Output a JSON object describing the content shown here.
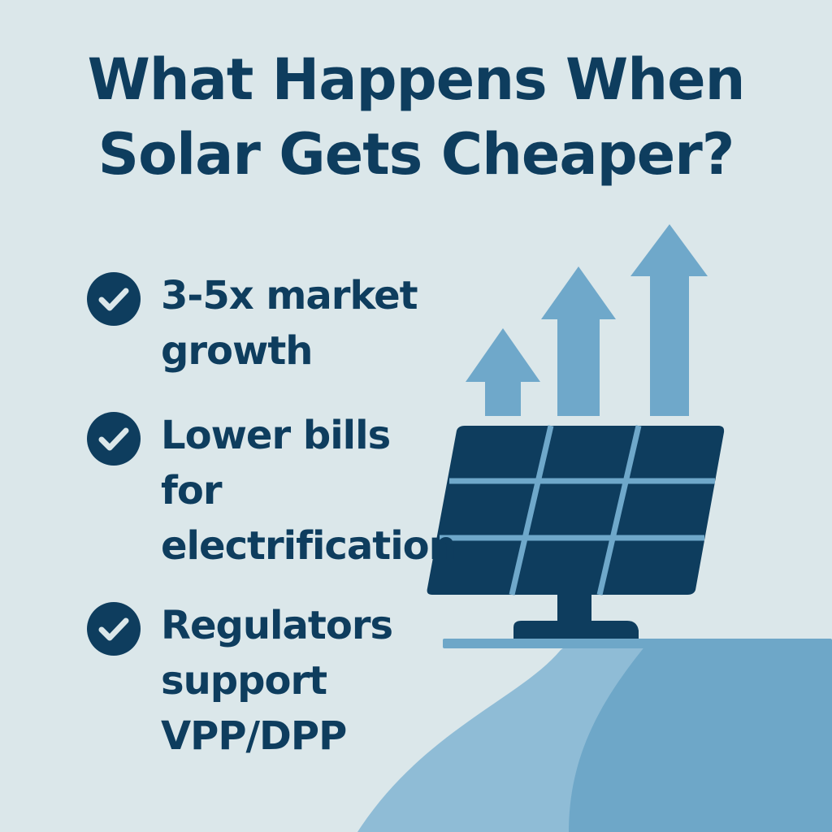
{
  "title": {
    "line1": "What Happens When",
    "line2": "Solar Gets Cheaper?"
  },
  "benefits": [
    {
      "icon": "check-circle-icon",
      "lines": [
        "3-5x market",
        "growth"
      ]
    },
    {
      "icon": "check-circle-icon",
      "lines": [
        "Lower bills",
        "for",
        "electrification"
      ]
    },
    {
      "icon": "check-circle-icon",
      "lines": [
        "Regulators",
        "support",
        "VPP/DPP"
      ]
    }
  ],
  "illustration": {
    "icons": [
      "arrow-up-icon",
      "arrow-up-icon",
      "arrow-up-icon",
      "solar-panel-icon"
    ]
  },
  "colors": {
    "background": "#dbe7ea",
    "text": "#0e3d5e",
    "panel": "#0e3d5e",
    "arrow": "#6fa8ca",
    "grid_lines": "#6fa8ca",
    "hill_light": "#8fbcd6",
    "hill_dark": "#6ea7c8"
  }
}
